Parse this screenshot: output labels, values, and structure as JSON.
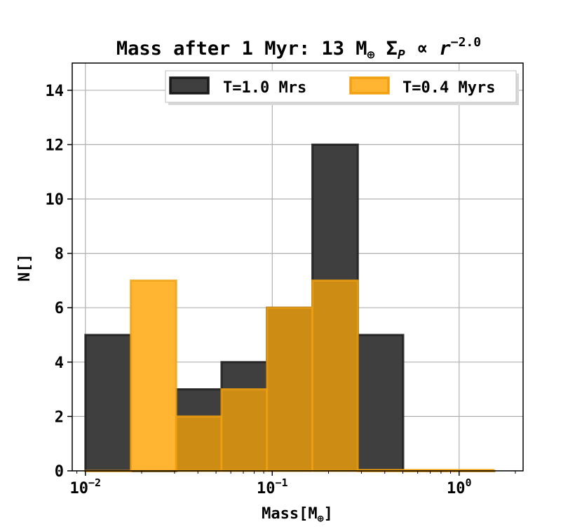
{
  "chart_data": {
    "type": "bar",
    "title": "Mass after 1 Myr: 13 M⊕ Σ_P ∝ r^−2.0",
    "xlabel": "Mass[M⊕]",
    "ylabel": "N[]",
    "xscale": "log",
    "xlim": [
      0.0085,
      2.2
    ],
    "ylim": [
      0,
      15
    ],
    "grid": true,
    "legend_position": "top-right",
    "x_ticks": [
      {
        "value": 0.01,
        "base": "10",
        "exp": "−2"
      },
      {
        "value": 0.1,
        "base": "10",
        "exp": "−1"
      },
      {
        "value": 1,
        "base": "10",
        "exp": "0"
      }
    ],
    "y_ticks": [
      0,
      2,
      4,
      6,
      8,
      10,
      12,
      14
    ],
    "series": [
      {
        "name": "T=1.0 Mrs",
        "color": "#3f3f3f",
        "edge_color": "#1a1a1a",
        "bins": [
          {
            "x0": 0.01,
            "x1": 0.0175,
            "count": 5
          },
          {
            "x0": 0.0175,
            "x1": 0.0306,
            "count": 0
          },
          {
            "x0": 0.0306,
            "x1": 0.0535,
            "count": 3
          },
          {
            "x0": 0.0535,
            "x1": 0.0937,
            "count": 4
          },
          {
            "x0": 0.0937,
            "x1": 0.164,
            "count": 6
          },
          {
            "x0": 0.164,
            "x1": 0.287,
            "count": 12
          },
          {
            "x0": 0.287,
            "x1": 0.502,
            "count": 5
          },
          {
            "x0": 0.502,
            "x1": 0.879,
            "count": 0
          },
          {
            "x0": 0.879,
            "x1": 1.54,
            "count": 0
          }
        ]
      },
      {
        "name": "T=0.4 Myrs",
        "color": "#ffb432",
        "edge_color": "#f0a010",
        "bins": [
          {
            "x0": 0.01,
            "x1": 0.0175,
            "count": 0
          },
          {
            "x0": 0.0175,
            "x1": 0.0306,
            "count": 7
          },
          {
            "x0": 0.0306,
            "x1": 0.0535,
            "count": 2
          },
          {
            "x0": 0.0535,
            "x1": 0.0937,
            "count": 3
          },
          {
            "x0": 0.0937,
            "x1": 0.164,
            "count": 6
          },
          {
            "x0": 0.164,
            "x1": 0.287,
            "count": 7
          },
          {
            "x0": 0.287,
            "x1": 0.502,
            "count": 0
          },
          {
            "x0": 0.502,
            "x1": 0.879,
            "count": 0
          },
          {
            "x0": 0.879,
            "x1": 1.54,
            "count": 0
          }
        ]
      }
    ],
    "overlap_color": "#cd8c14"
  }
}
